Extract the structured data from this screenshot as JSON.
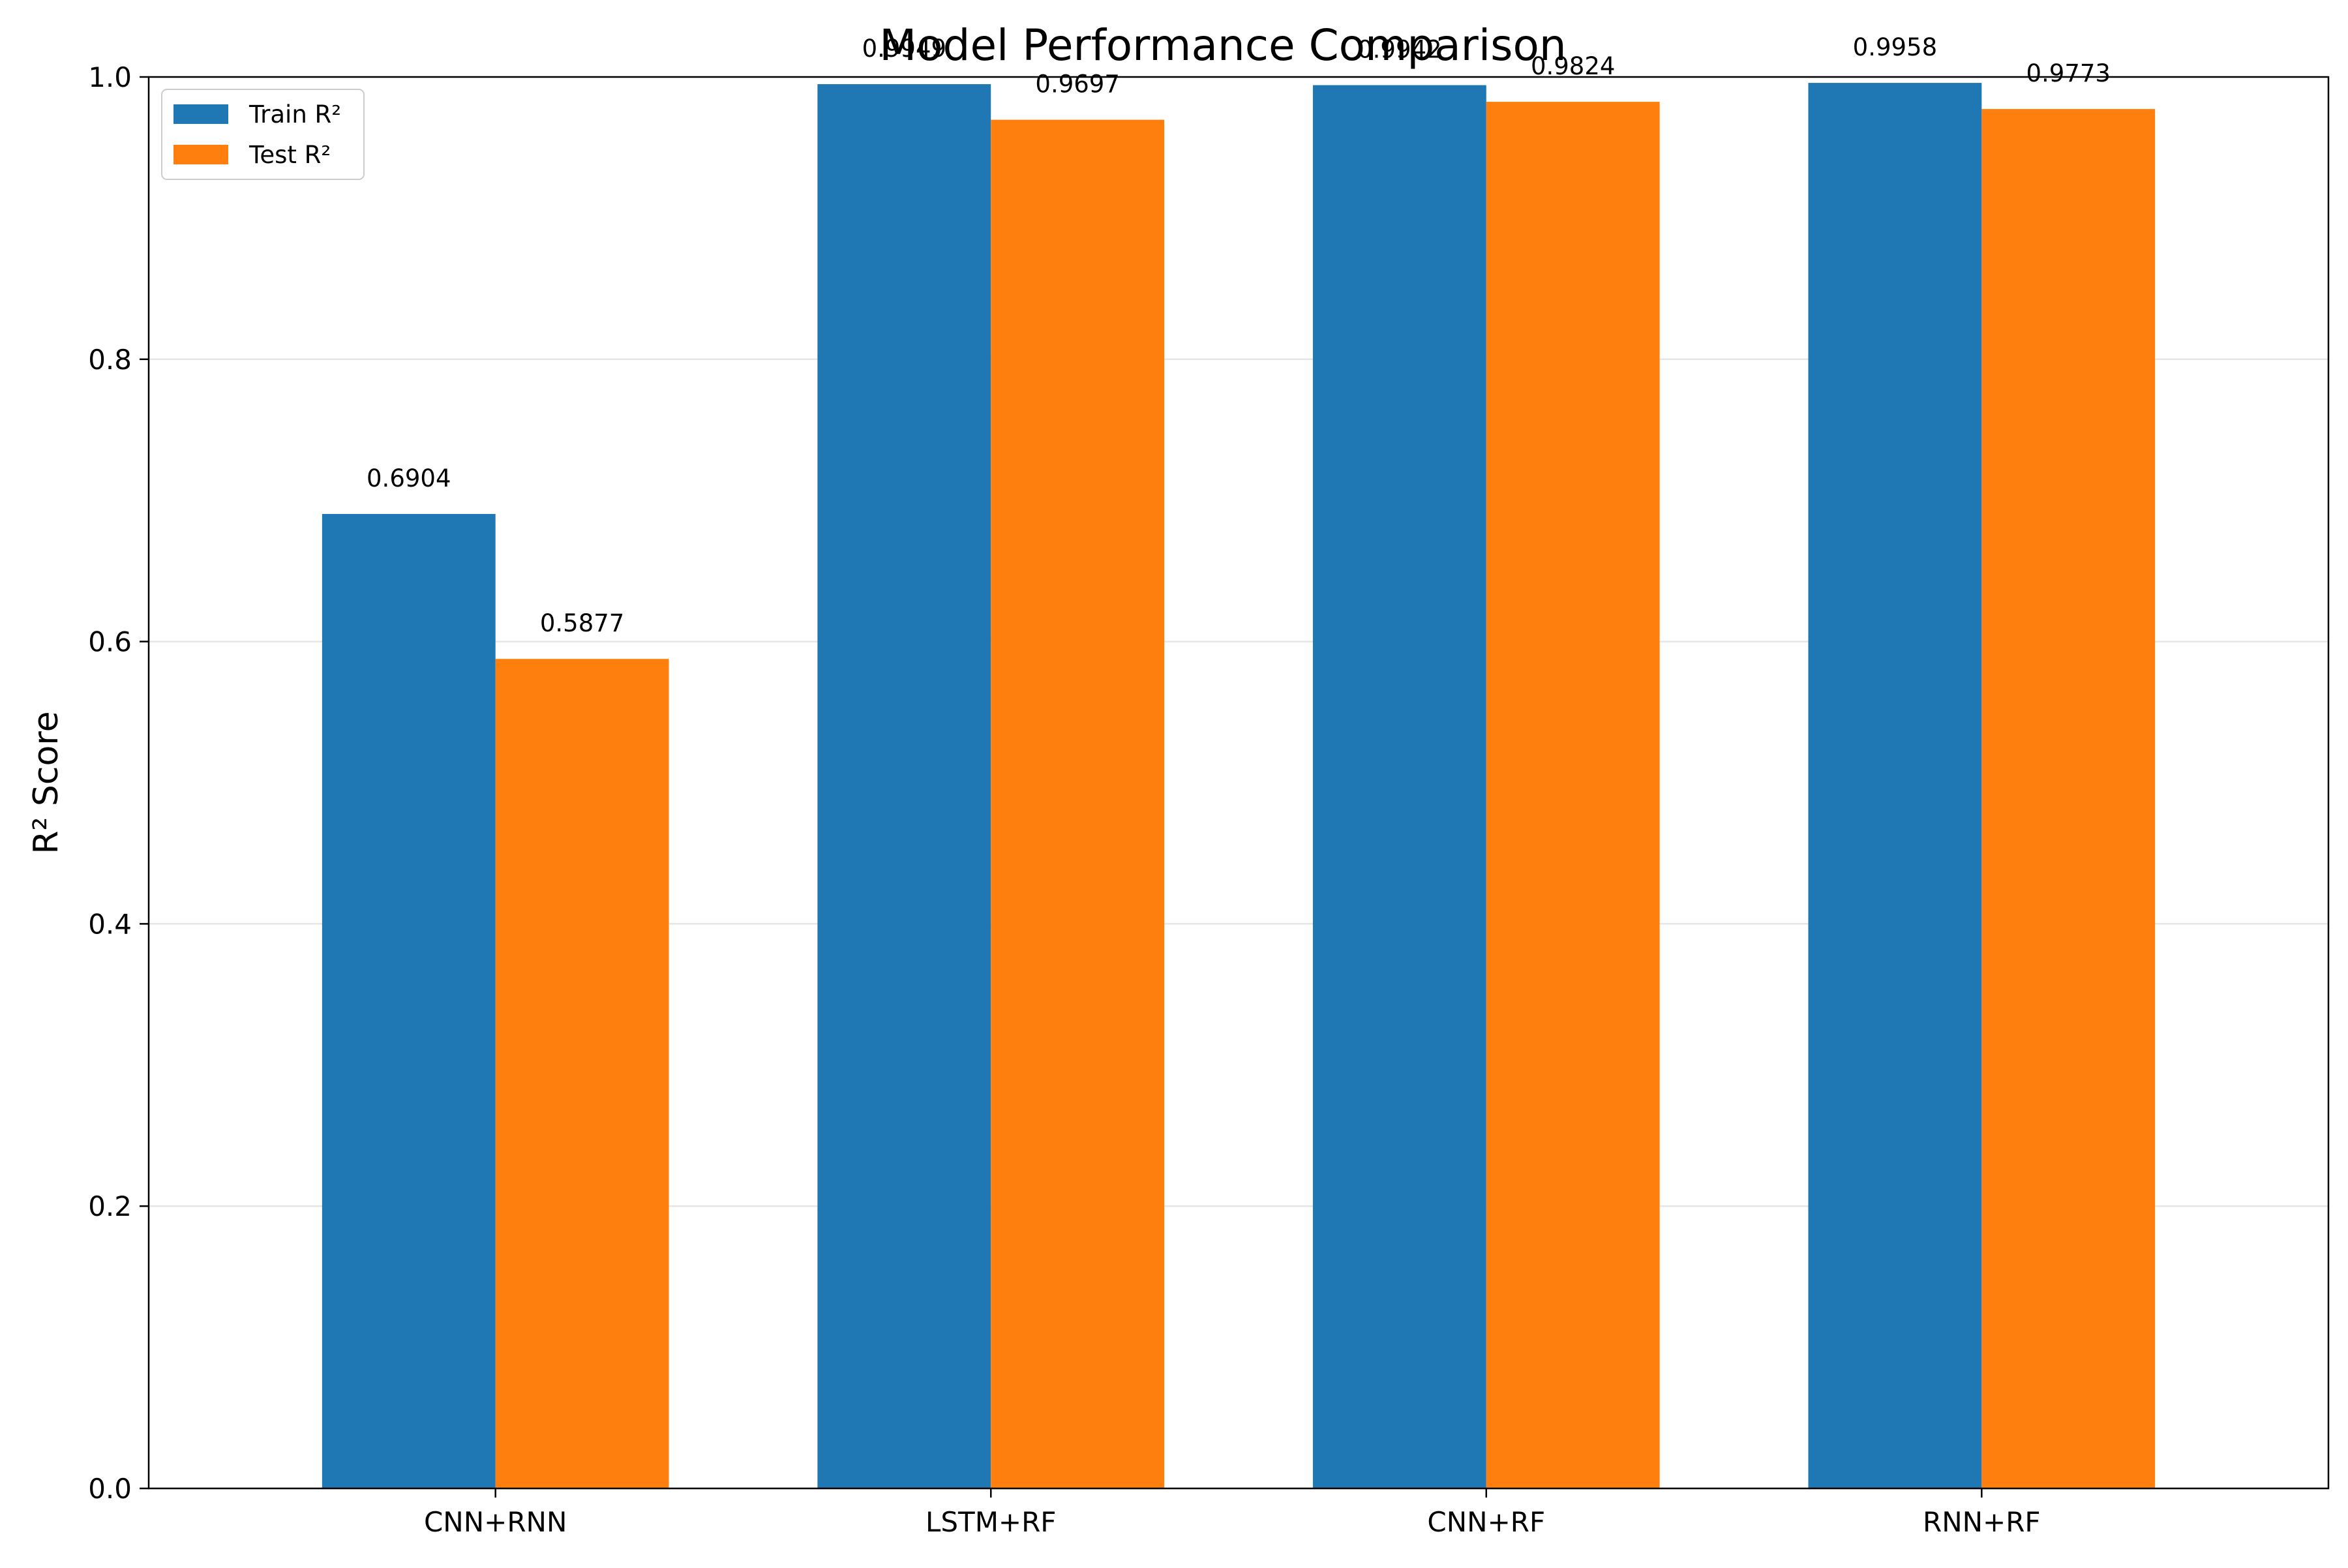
{
  "chart_data": {
    "type": "bar",
    "title": "Model Performance Comparison",
    "xlabel": "",
    "ylabel": "R² Score",
    "categories": [
      "CNN+RNN",
      "LSTM+RF",
      "CNN+RF",
      "RNN+RF"
    ],
    "series": [
      {
        "name": "Train R²",
        "color": "#1f77b4",
        "values": [
          0.6904,
          0.9949,
          0.9942,
          0.9958
        ],
        "labels": [
          "0.6904",
          "0.9949",
          "0.9942",
          "0.9958"
        ]
      },
      {
        "name": "Test R²",
        "color": "#ff7f0e",
        "values": [
          0.5877,
          0.9697,
          0.9824,
          0.9773
        ],
        "labels": [
          "0.5877",
          "0.9697",
          "0.9824",
          "0.9773"
        ]
      }
    ],
    "ylim": [
      0,
      1.0
    ],
    "yticks": [
      0.0,
      0.2,
      0.4,
      0.6,
      0.8,
      1.0
    ],
    "ytick_labels": [
      "0.0",
      "0.2",
      "0.4",
      "0.6",
      "0.8",
      "1.0"
    ],
    "grid": "y",
    "legend_position": "top-left"
  }
}
